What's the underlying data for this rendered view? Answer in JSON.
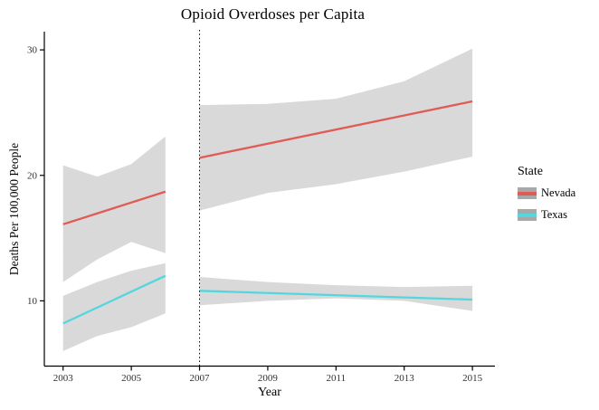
{
  "figure": {
    "background": "#FFFFFF"
  },
  "chart_data": {
    "type": "line",
    "title": "Opioid Overdoses per Capita",
    "xlabel": "Year",
    "ylabel": "Deaths Per 100,000 People",
    "xlim": [
      2002.45,
      2015.66
    ],
    "ylim": [
      4.8,
      31.45
    ],
    "x_ticks": [
      2003,
      2005,
      2007,
      2009,
      2011,
      2013,
      2015
    ],
    "y_ticks": [
      10,
      20,
      30
    ],
    "grid": "off",
    "legend_position": "right",
    "axis_color": "#000000",
    "tick_label_color": "#303030",
    "ci_band_color": "#D9D9D9",
    "vline": {
      "x": 2007,
      "style": "dotted",
      "color": "#000000"
    },
    "series": [
      {
        "name": "Nevada",
        "color": "#E05B55",
        "segments": [
          {
            "x": [
              2003,
              2006
            ],
            "y": [
              16.1,
              18.7
            ],
            "band": {
              "x": [
                2003,
                2004,
                2005,
                2006
              ],
              "upper": [
                20.8,
                19.9,
                20.9,
                23.1
              ],
              "lower": [
                11.5,
                13.3,
                14.7,
                13.8
              ]
            }
          },
          {
            "x": [
              2007,
              2015
            ],
            "y": [
              21.4,
              25.9
            ],
            "band": {
              "x": [
                2007,
                2009,
                2011,
                2013,
                2015
              ],
              "upper": [
                25.6,
                25.7,
                26.1,
                27.5,
                30.1
              ],
              "lower": [
                17.2,
                18.6,
                19.3,
                20.3,
                21.5
              ]
            }
          }
        ]
      },
      {
        "name": "Texas",
        "color": "#55D6DE",
        "segments": [
          {
            "x": [
              2003,
              2006
            ],
            "y": [
              8.2,
              12.0
            ],
            "band": {
              "x": [
                2003,
                2004,
                2005,
                2006
              ],
              "upper": [
                10.4,
                11.5,
                12.4,
                13.0
              ],
              "lower": [
                6.0,
                7.2,
                7.9,
                9.0
              ]
            }
          },
          {
            "x": [
              2007,
              2015
            ],
            "y": [
              10.8,
              10.1
            ],
            "band": {
              "x": [
                2007,
                2009,
                2011,
                2013,
                2015
              ],
              "upper": [
                11.9,
                11.5,
                11.25,
                11.1,
                11.2
              ],
              "lower": [
                9.65,
                10.0,
                10.2,
                10.0,
                9.2
              ]
            }
          }
        ]
      }
    ],
    "legend": {
      "title": "State",
      "entries": [
        {
          "label": "Nevada",
          "color": "#E05B55",
          "key_background": "#A8A8A8"
        },
        {
          "label": "Texas",
          "color": "#55D6DE",
          "key_background": "#A8A8A8"
        }
      ]
    }
  }
}
